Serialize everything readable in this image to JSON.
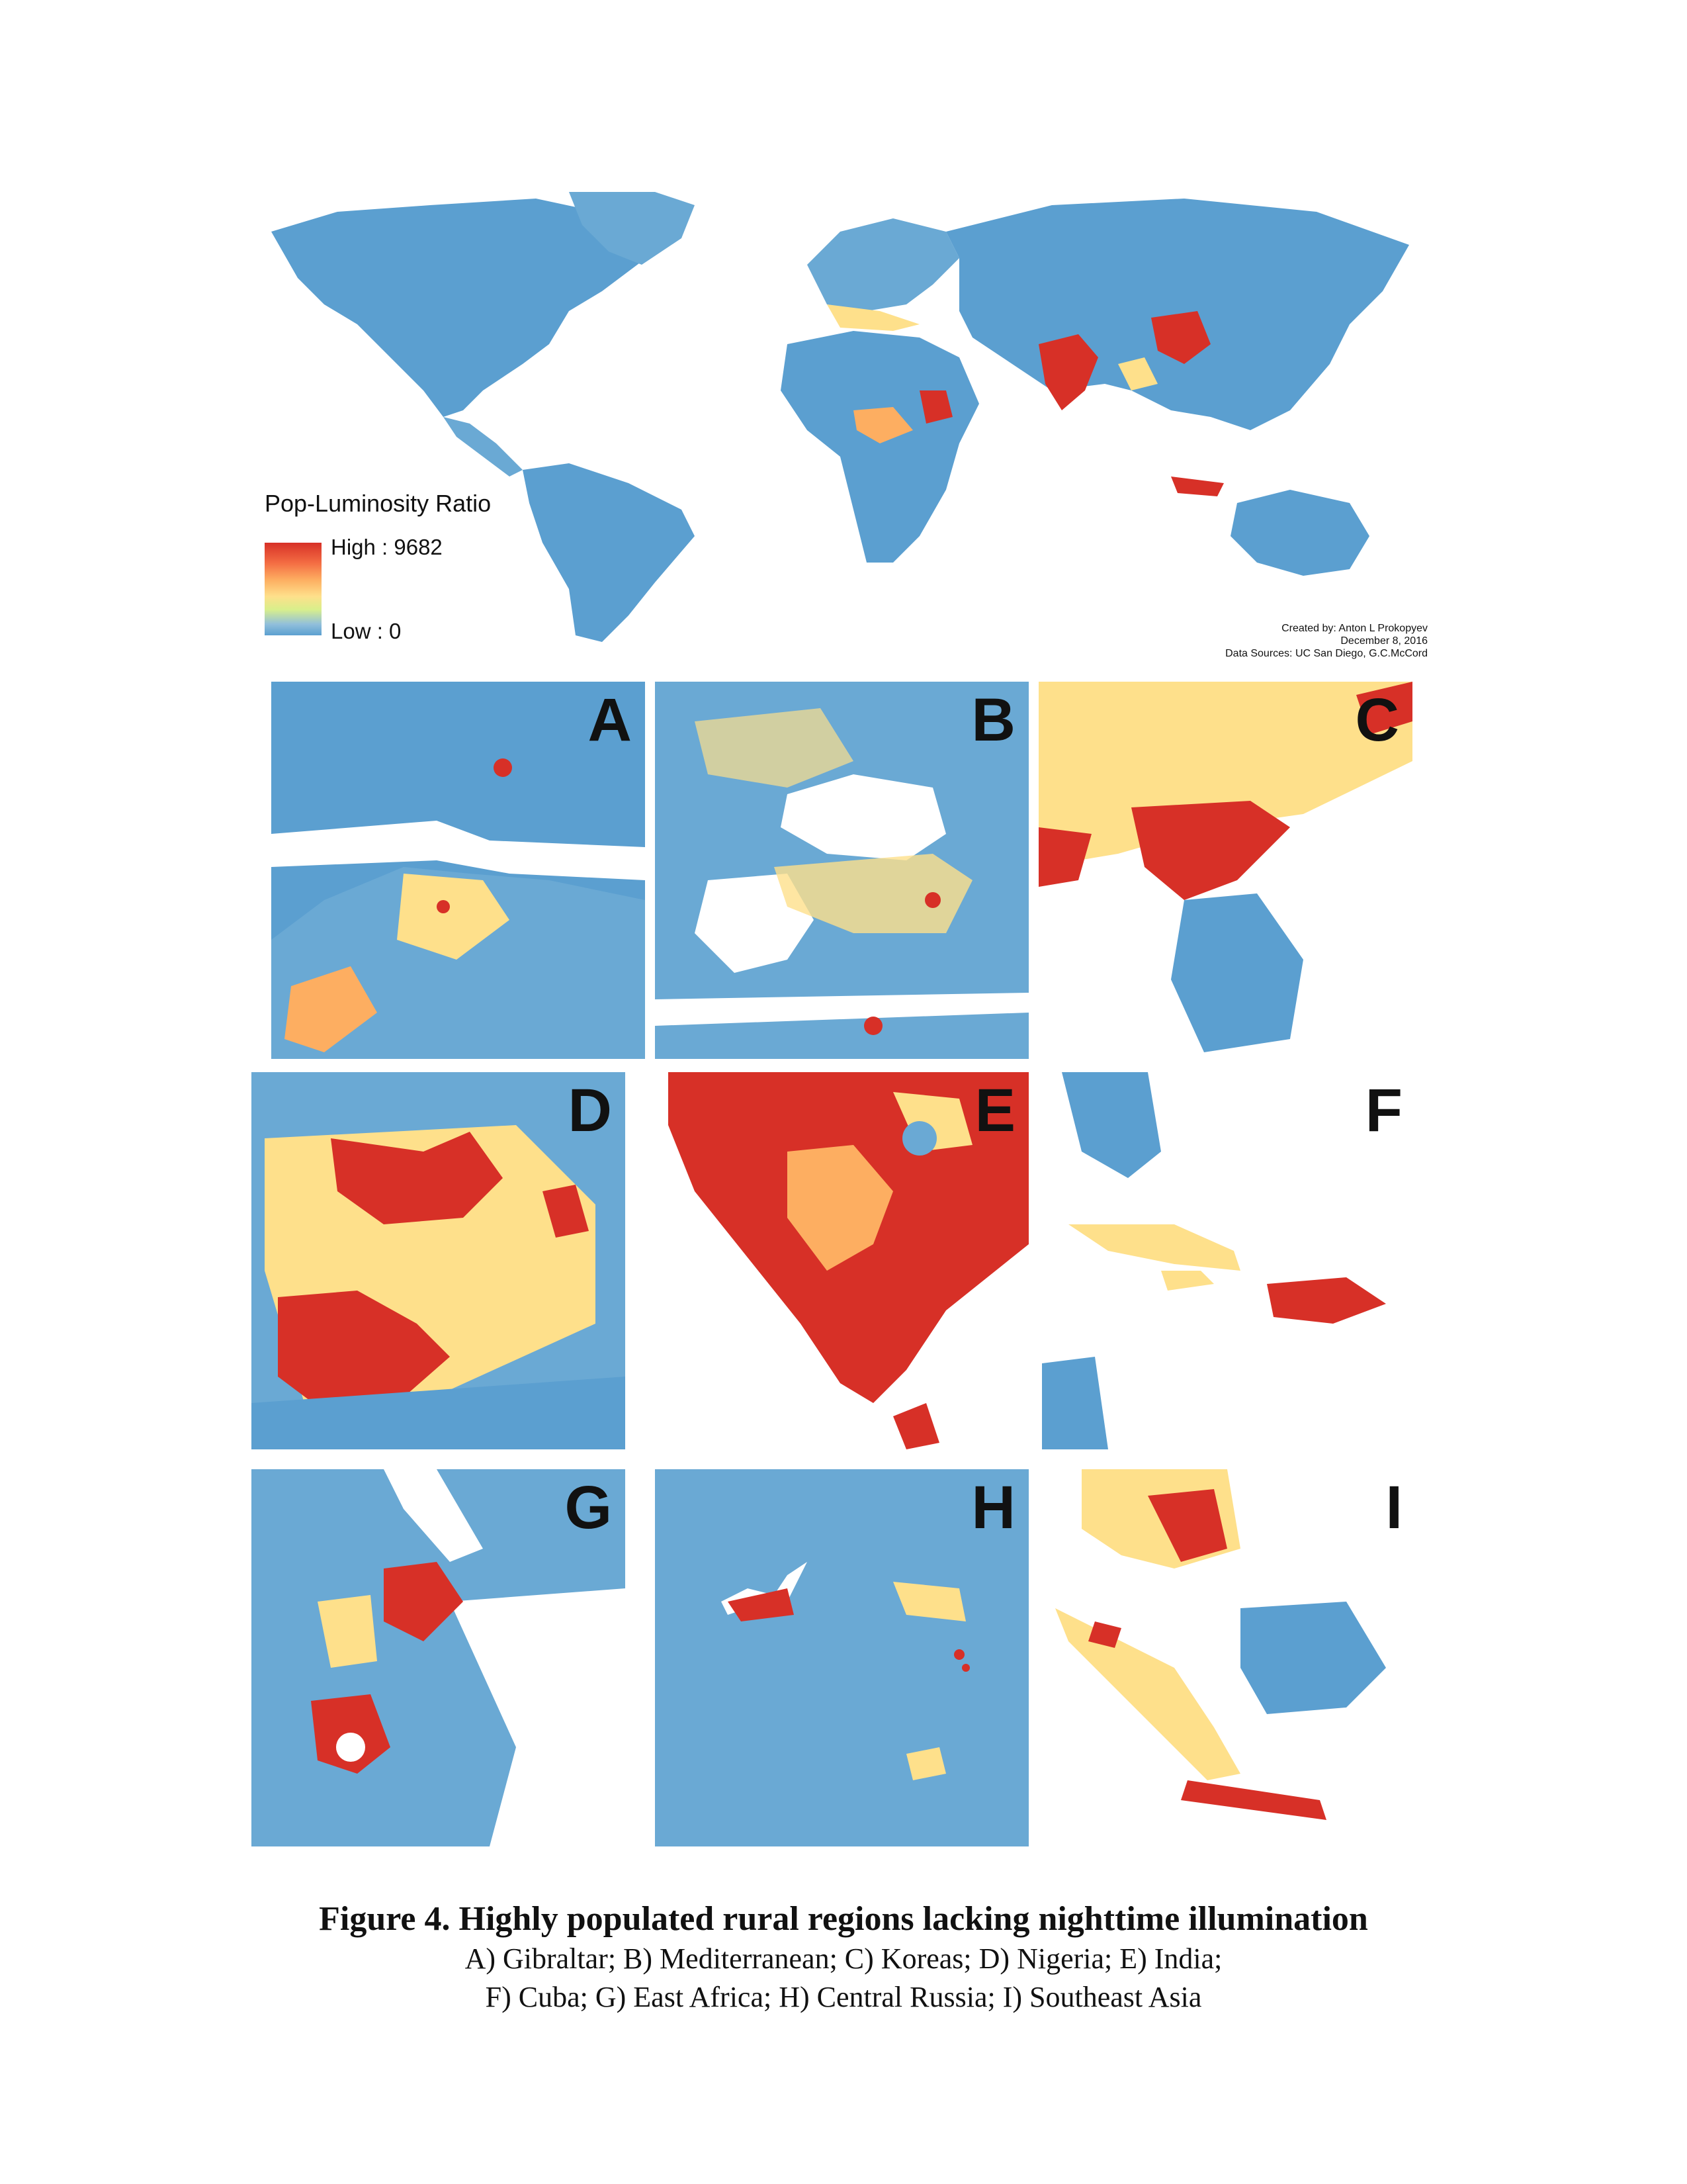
{
  "legend": {
    "title": "Pop-Luminosity Ratio",
    "high_label": "High : 9682",
    "low_label": "Low : 0",
    "high_value": 9682,
    "low_value": 0,
    "colors": {
      "high": "#d73027",
      "mid": "#fee08b",
      "low": "#5b9fd0"
    }
  },
  "credits": {
    "created_by": "Created by: Anton L Prokopyev",
    "date": "December 8, 2016",
    "sources": "Data Sources: UC San Diego, G.C.McCord"
  },
  "panels": [
    {
      "letter": "A"
    },
    {
      "letter": "B"
    },
    {
      "letter": "C"
    },
    {
      "letter": "D"
    },
    {
      "letter": "E"
    },
    {
      "letter": "F"
    },
    {
      "letter": "G"
    },
    {
      "letter": "H"
    },
    {
      "letter": "I"
    }
  ],
  "caption": {
    "title": "Figure 4. Highly populated rural regions lacking nighttime illumination",
    "line1": "A) Gibraltar; B) Mediterranean; C) Koreas; D) Nigeria; E) India;",
    "line2": "F) Cuba; G) East Africa; H) Central Russia; I) Southeast Asia"
  }
}
